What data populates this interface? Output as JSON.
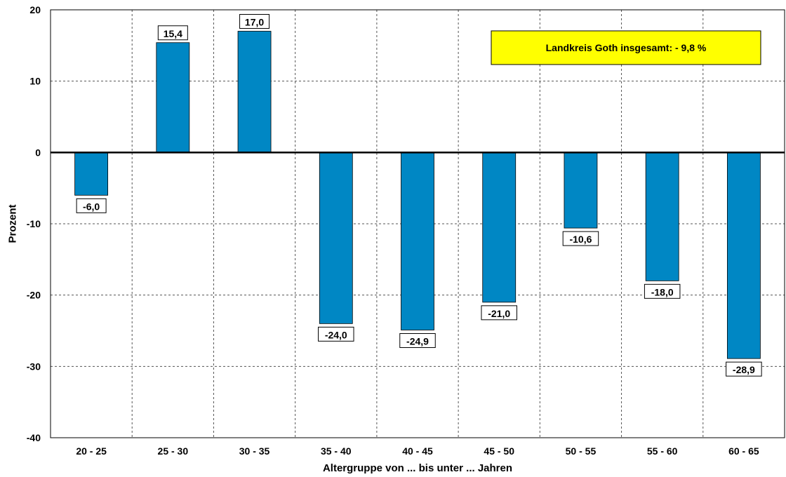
{
  "chart_data": {
    "type": "bar",
    "categories": [
      "20 - 25",
      "25 - 30",
      "30 - 35",
      "35 - 40",
      "40 - 45",
      "45 - 50",
      "50 - 55",
      "55 - 60",
      "60 - 65"
    ],
    "values": [
      -6.0,
      15.4,
      17.0,
      -24.0,
      -24.9,
      -21.0,
      -10.6,
      -18.0,
      -28.9
    ],
    "data_labels": [
      "-6,0",
      "15,4",
      "17,0",
      "-24,0",
      "-24,9",
      "-21,0",
      "-10,6",
      "-18,0",
      "-28,9"
    ],
    "xlabel": "Altergruppe von ... bis unter ... Jahren",
    "ylabel": "Prozent",
    "ylim": [
      -40,
      20
    ],
    "yticks": [
      20,
      10,
      0,
      -10,
      -20,
      -30,
      -40
    ],
    "ytick_labels": [
      "20",
      "10",
      "0",
      "-10",
      "-20",
      "-30",
      "-40"
    ],
    "grid": true,
    "bar_color": "#0087c4",
    "annotation": {
      "text": "Landkreis Goth insgesamt: - 9,8 %",
      "background": "#ffff00"
    }
  }
}
